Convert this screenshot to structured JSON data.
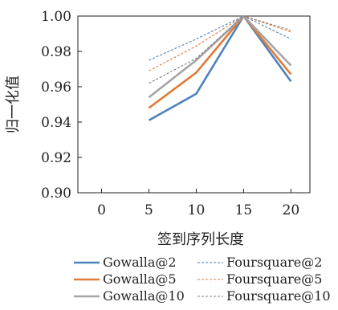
{
  "chart_data": {
    "type": "line",
    "title": "",
    "xlabel": "签到序列长度",
    "ylabel": "归一化值",
    "x_ticks": [
      "0",
      "5",
      "10",
      "15",
      "20"
    ],
    "y_ticks": [
      "0.90",
      "0.92",
      "0.94",
      "0.96",
      "0.98",
      "1.00"
    ],
    "xlim": [
      -2.5,
      22
    ],
    "ylim": [
      0.9,
      1.0
    ],
    "grid": false,
    "legend_position": "bottom",
    "x": [
      5,
      10,
      15,
      20
    ],
    "series": [
      {
        "name": "Gowalla@2",
        "values": [
          0.941,
          0.956,
          1.0,
          0.963
        ],
        "color": "#4f81bd",
        "style": "solid"
      },
      {
        "name": "Foursquare@2",
        "values": [
          0.975,
          0.987,
          1.0,
          0.987
        ],
        "color": "#4f81bd",
        "style": "dashed"
      },
      {
        "name": "Gowalla@5",
        "values": [
          0.948,
          0.968,
          1.0,
          0.967
        ],
        "color": "#e07b39",
        "style": "solid"
      },
      {
        "name": "Foursquare@5",
        "values": [
          0.969,
          0.983,
          1.0,
          0.991
        ],
        "color": "#e07b39",
        "style": "dashed"
      },
      {
        "name": "Gowalla@10",
        "values": [
          0.954,
          0.975,
          1.0,
          0.972
        ],
        "color": "#a5a5a5",
        "style": "solid"
      },
      {
        "name": "Foursquare@10",
        "values": [
          0.962,
          0.976,
          1.0,
          0.992
        ],
        "color": "#7f7f7f",
        "style": "dashed"
      }
    ]
  }
}
